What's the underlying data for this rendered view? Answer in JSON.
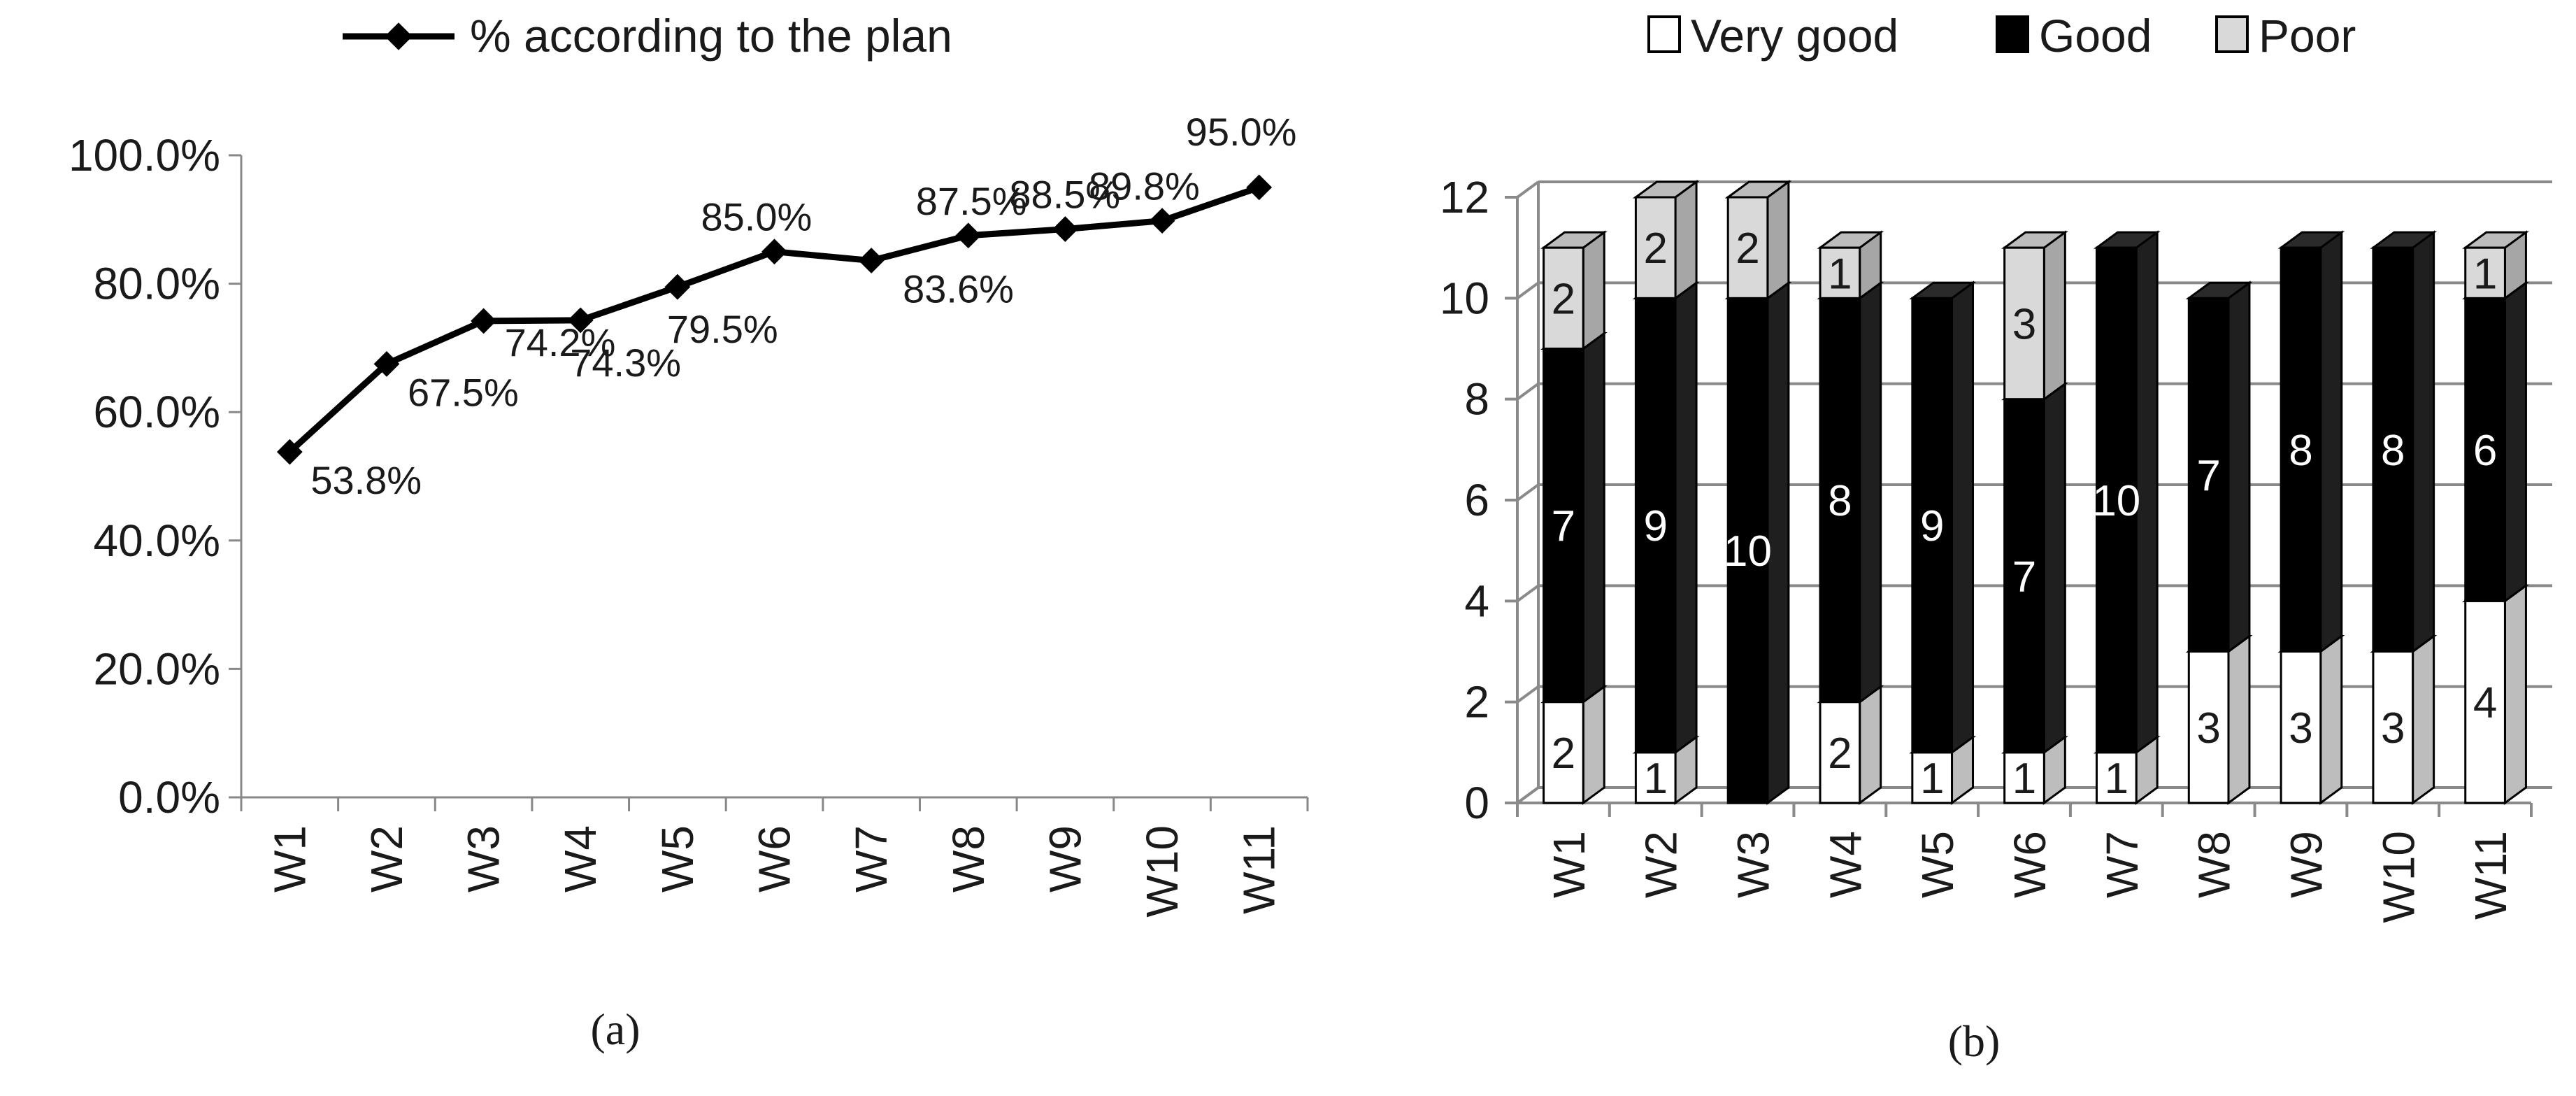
{
  "chart_data": [
    {
      "type": "line",
      "caption": "(a)",
      "categories": [
        "W1",
        "W2",
        "W3",
        "W4",
        "W5",
        "W6",
        "W7",
        "W8",
        "W9",
        "W10",
        "W11"
      ],
      "series": [
        {
          "name": "% according to the plan",
          "values": [
            53.8,
            67.5,
            74.2,
            74.3,
            79.5,
            85.0,
            83.6,
            87.5,
            88.5,
            89.8,
            95.0
          ],
          "labels": [
            "53.8%",
            "67.5%",
            "74.2%",
            "74.3%",
            "79.5%",
            "85.0%",
            "83.6%",
            "87.5%",
            "88.5%",
            "89.8%",
            "95.0%"
          ]
        }
      ],
      "ylim": [
        0,
        100
      ],
      "yticks": [
        "0.0%",
        "20.0%",
        "40.0%",
        "60.0%",
        "80.0%",
        "100.0%"
      ],
      "legend": "top",
      "grid": false
    },
    {
      "type": "bar",
      "stacked": true,
      "style": "3d",
      "caption": "(b)",
      "categories": [
        "W1",
        "W2",
        "W3",
        "W4",
        "W5",
        "W6",
        "W7",
        "W8",
        "W9",
        "W10",
        "W11"
      ],
      "series": [
        {
          "name": "Very good",
          "color": "#ffffff",
          "values": [
            2,
            1,
            0,
            2,
            1,
            1,
            1,
            3,
            3,
            3,
            4
          ]
        },
        {
          "name": "Good",
          "color": "#000000",
          "values": [
            7,
            9,
            10,
            8,
            9,
            7,
            10,
            7,
            8,
            8,
            6
          ]
        },
        {
          "name": "Poor",
          "color": "#d9d9d9",
          "values": [
            2,
            2,
            2,
            1,
            0,
            3,
            0,
            0,
            0,
            0,
            1
          ]
        }
      ],
      "ylim": [
        0,
        12
      ],
      "yticks": [
        "0",
        "2",
        "4",
        "6",
        "8",
        "10",
        "12"
      ],
      "legend": "top",
      "grid": true
    }
  ]
}
